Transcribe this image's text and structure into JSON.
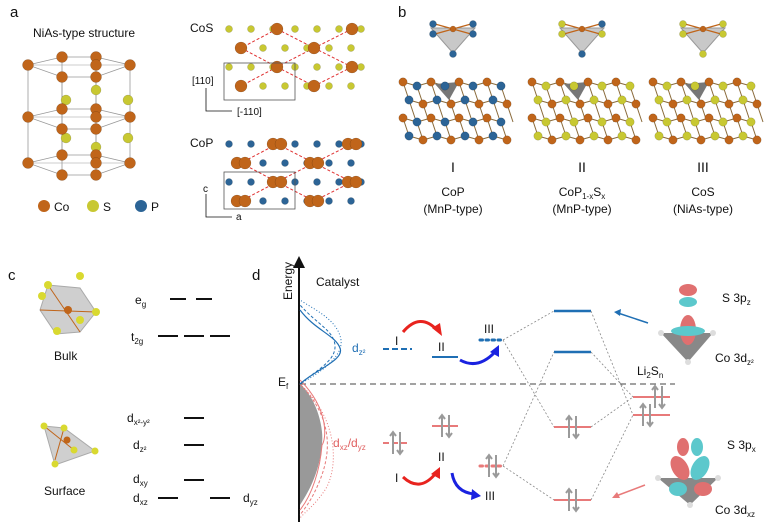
{
  "panels": {
    "a": "a",
    "b": "b",
    "c": "c",
    "d": "d"
  },
  "panel_a": {
    "title": "NiAs-type structure",
    "legend": [
      {
        "label": "Co",
        "color": "#c0651a"
      },
      {
        "label": "S",
        "color": "#c8c832"
      },
      {
        "label": "P",
        "color": "#2c6496"
      }
    ],
    "cos_label": "CoS",
    "cop_label": "CoP",
    "axis_110": "[110]",
    "axis_m110": "[-110]",
    "axis_c": "c",
    "axis_a": "a"
  },
  "panel_b": {
    "columns": [
      {
        "roman": "I",
        "compound": "CoP",
        "compound_sub": "",
        "compound_tail": "",
        "type": "(MnP-type)"
      },
      {
        "roman": "II",
        "compound": "CoP",
        "compound_sub": "1-x",
        "compound_tail": "S",
        "compound_sub2": "x",
        "type": "(MnP-type)"
      },
      {
        "roman": "III",
        "compound": "CoS",
        "compound_sub": "",
        "compound_tail": "",
        "type": "(NiAs-type)"
      }
    ]
  },
  "panel_c": {
    "bulk_label": "Bulk",
    "surface_label": "Surface",
    "eg": {
      "main": "e",
      "sub": "g"
    },
    "t2g": {
      "main": "t",
      "sub": "2g"
    },
    "dx2y2": {
      "main": "d",
      "sub": "x²-y²"
    },
    "dz2": {
      "main": "d",
      "sub": "z²"
    },
    "dxy": {
      "main": "d",
      "sub": "xy"
    },
    "dxz": {
      "main": "d",
      "sub": "xz"
    },
    "dyz": {
      "main": "d",
      "sub": "yz"
    }
  },
  "panel_d": {
    "energy_label": "Energy",
    "catalyst_label": "Catalyst",
    "ef": {
      "main": "E",
      "sub": "f"
    },
    "dz2": {
      "main": "d",
      "sub": "z²"
    },
    "dxzdyz": {
      "m1": "d",
      "s1": "xz",
      "m2": "/d",
      "s2": "yz"
    },
    "roman_I": "I",
    "roman_II": "II",
    "roman_III": "III",
    "li2sn": {
      "m1": "Li",
      "s1": "2",
      "m2": "S",
      "s2": "n"
    },
    "s3pz": {
      "main": "S 3p",
      "sub": "z"
    },
    "co3dz2": {
      "main": "Co 3d",
      "sub": "z²"
    },
    "s3px": {
      "main": "S 3p",
      "sub": "x"
    },
    "co3dxz": {
      "main": "Co 3d",
      "sub": "xz"
    },
    "colors": {
      "blue": "#1f6fb4",
      "red": "#e87a7a",
      "arrow_red": "#e8231e",
      "arrow_blue": "#1a22e0",
      "spin": "#9a9a9a"
    }
  }
}
